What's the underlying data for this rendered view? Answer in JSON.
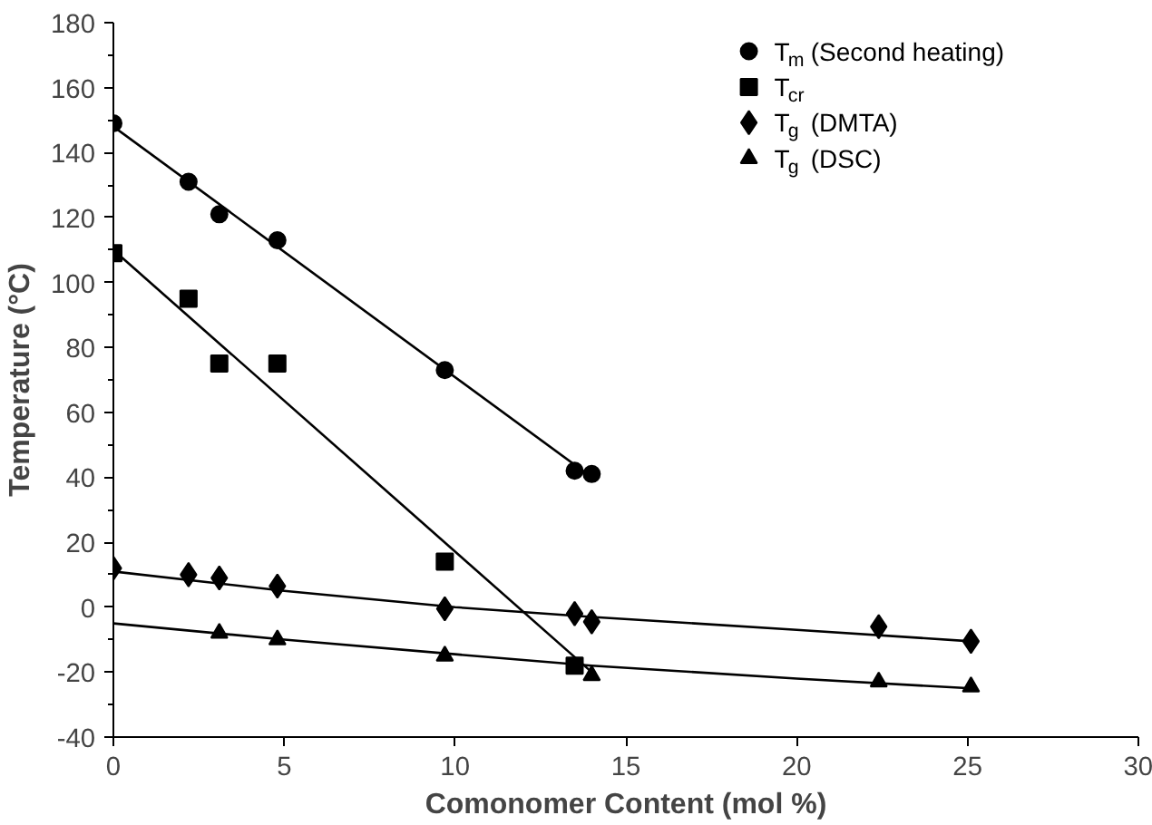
{
  "chart_data": {
    "type": "scatter",
    "xlabel": "Comonomer Content (mol %)",
    "ylabel": "Temperature (°C)",
    "xlim": [
      0,
      30
    ],
    "ylim": [
      -40,
      180
    ],
    "xticks": [
      0,
      5,
      10,
      15,
      20,
      25,
      30
    ],
    "yticks": [
      -40,
      -20,
      0,
      20,
      40,
      60,
      80,
      100,
      120,
      140,
      160,
      180
    ],
    "grid": false,
    "legend": "top right",
    "series": [
      {
        "name": "T$_{m}$ (Second heating)",
        "color": "#000000",
        "marker": "circle",
        "x": [
          0,
          2.2,
          3.1,
          4.8,
          9.7,
          13.5,
          14
        ],
        "values": [
          149,
          131,
          121,
          113,
          73,
          42,
          41
        ]
      },
      {
        "name": "T$_{cr}$",
        "color": "#000000",
        "marker": "square",
        "x": [
          0,
          2.2,
          3.1,
          4.8,
          9.7,
          13.5
        ],
        "values": [
          109,
          95,
          75,
          75,
          14,
          -18
        ]
      },
      {
        "name": "T$_{g}$ (DMTA)",
        "color": "#000000",
        "marker": "diamond",
        "x": [
          0,
          2.2,
          3.1,
          4.8,
          9.7,
          13.5,
          14,
          22.4,
          25.1
        ],
        "values": [
          12,
          10,
          9,
          6.5,
          -0.5,
          -2,
          -4.5,
          -6,
          -10.5
        ]
      },
      {
        "name": "T$_{g}$ (DSC)",
        "color": "#000000",
        "marker": "triangle",
        "x": [
          3.1,
          4.8,
          9.7,
          14,
          22.4,
          25.1
        ],
        "values": [
          -8,
          -10,
          -15,
          -21,
          -23,
          -24.5
        ]
      },
      {
        "type": "line",
        "color": "#000000",
        "marker": "none",
        "x": [
          0,
          14
        ],
        "values": [
          148,
          40
        ]
      },
      {
        "type": "line",
        "color": "#000000",
        "marker": "none",
        "x": [
          0,
          14
        ],
        "values": [
          110,
          -20
        ]
      },
      {
        "type": "line",
        "color": "#000000",
        "marker": "none",
        "x": [
          0,
          5,
          10,
          14,
          20,
          25.1
        ],
        "values": [
          11,
          5,
          0,
          -3,
          -7,
          -10.5
        ]
      },
      {
        "type": "line",
        "color": "#000000",
        "marker": "none",
        "x": [
          0,
          5,
          10,
          14,
          20,
          25.1
        ],
        "values": [
          -5,
          -10,
          -14.5,
          -18,
          -22,
          -25
        ]
      }
    ]
  }
}
